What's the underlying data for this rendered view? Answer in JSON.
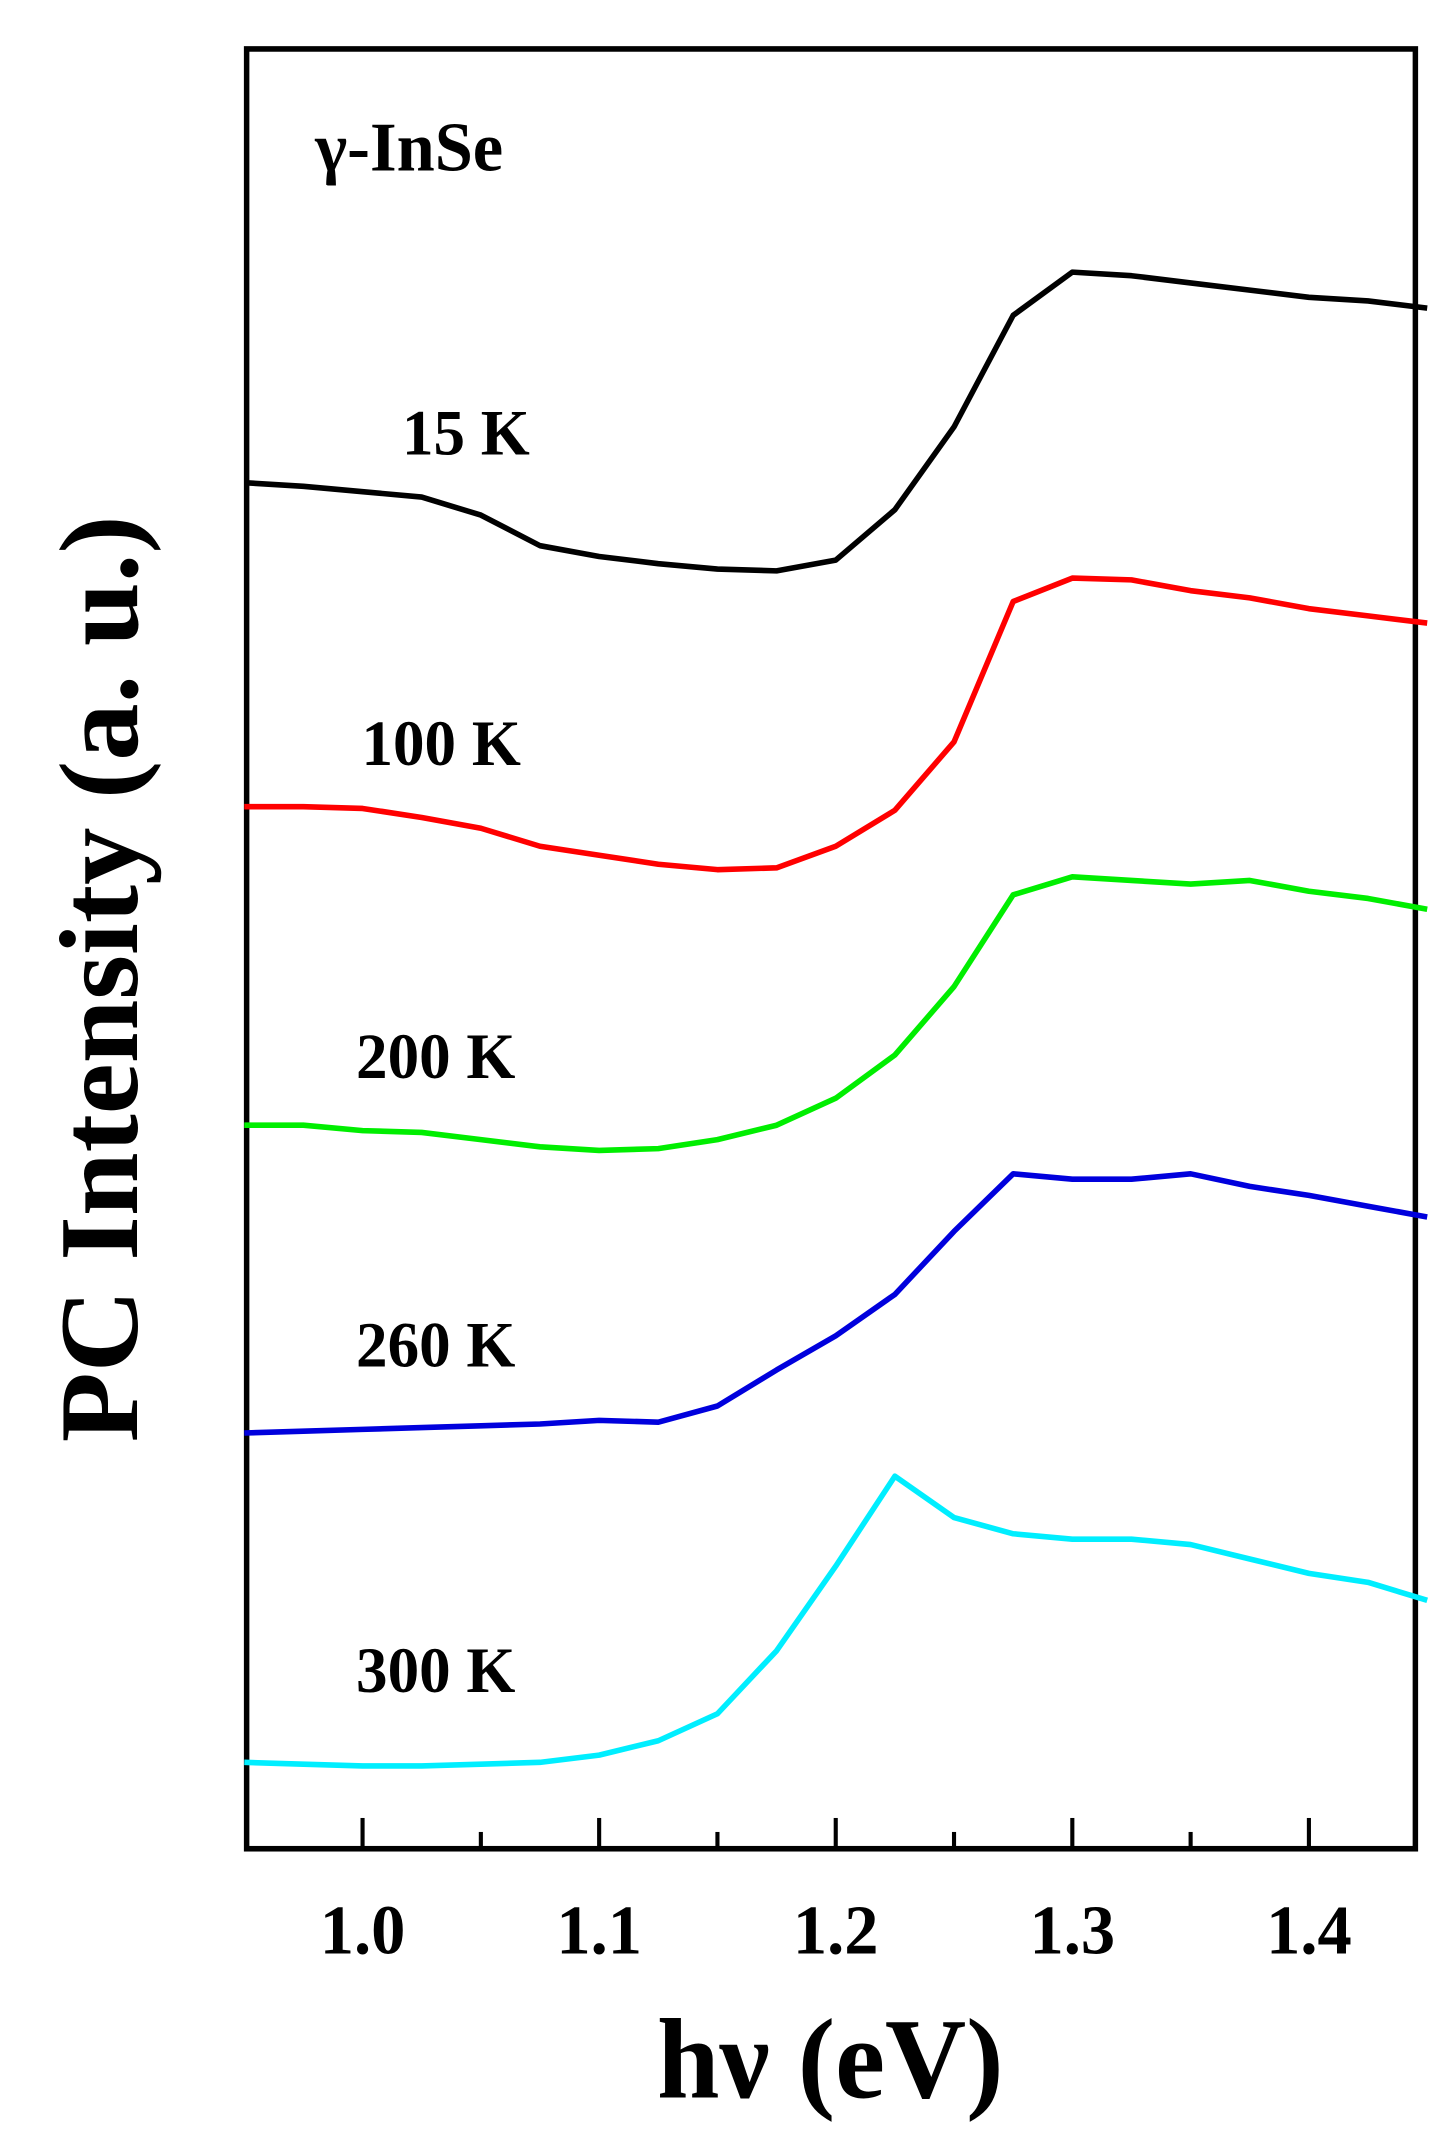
{
  "chart_data": {
    "type": "line",
    "annotation": "γ-InSe",
    "x_label": "hν (eV)",
    "y_label": "PC Intensity (a. u.)",
    "xlim": [
      0.951,
      1.445
    ],
    "ylim": [
      0,
      100
    ],
    "xticks": [
      {
        "value": 1,
        "label": "1.0"
      },
      {
        "value": 1.1,
        "label": "1.1"
      },
      {
        "value": 1.2,
        "label": "1.2"
      },
      {
        "value": 1.3,
        "label": "1.3"
      },
      {
        "value": 1.4,
        "label": "1.4"
      }
    ],
    "xminorticks": [
      1.05,
      1.15,
      1.25,
      1.35
    ],
    "x": [
      0.95,
      0.975,
      1.0,
      1.025,
      1.05,
      1.075,
      1.1,
      1.125,
      1.15,
      1.175,
      1.2,
      1.225,
      1.25,
      1.275,
      1.3,
      1.325,
      1.35,
      1.375,
      1.4,
      1.425,
      1.45
    ],
    "series": [
      {
        "name": "15 K",
        "color": "#000000",
        "values": [
          75.9,
          75.7,
          75.4,
          75.1,
          74.1,
          72.4,
          71.8,
          71.4,
          71.1,
          71.0,
          71.6,
          74.4,
          79.0,
          85.2,
          87.6,
          87.4,
          87.0,
          86.6,
          86.2,
          86.0,
          85.6
        ]
      },
      {
        "name": "100 K",
        "color": "#ff0000",
        "values": [
          57.9,
          57.9,
          57.8,
          57.3,
          56.7,
          55.7,
          55.2,
          54.7,
          54.4,
          54.5,
          55.7,
          57.7,
          61.5,
          69.3,
          70.6,
          70.5,
          69.9,
          69.5,
          68.9,
          68.5,
          68.1
        ]
      },
      {
        "name": "200 K",
        "color": "#00ee00",
        "values": [
          40.2,
          40.2,
          39.9,
          39.8,
          39.4,
          39.0,
          38.8,
          38.9,
          39.4,
          40.2,
          41.7,
          44.1,
          47.9,
          53.0,
          54.0,
          53.8,
          53.6,
          53.8,
          53.2,
          52.8,
          52.2
        ]
      },
      {
        "name": "260 K",
        "color": "#0000dd",
        "values": [
          23.1,
          23.2,
          23.3,
          23.4,
          23.5,
          23.6,
          23.8,
          23.7,
          24.6,
          26.6,
          28.5,
          30.8,
          34.3,
          37.5,
          37.2,
          37.2,
          37.5,
          36.8,
          36.3,
          35.7,
          35.1
        ]
      },
      {
        "name": "300 K",
        "color": "#00eeff",
        "values": [
          4.8,
          4.7,
          4.6,
          4.6,
          4.7,
          4.8,
          5.2,
          6.0,
          7.5,
          11.0,
          15.7,
          20.7,
          18.4,
          17.5,
          17.2,
          17.2,
          16.9,
          16.1,
          15.3,
          14.8,
          13.8
        ]
      }
    ]
  }
}
